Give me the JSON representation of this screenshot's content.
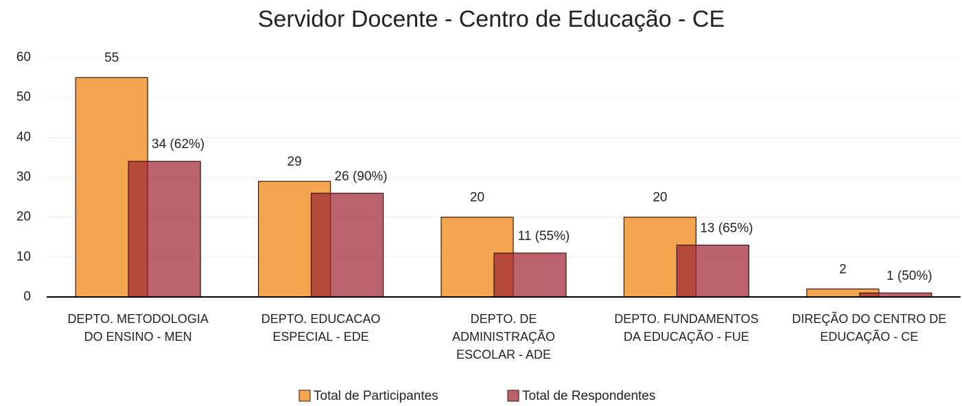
{
  "chart_data": {
    "type": "bar",
    "title": "Servidor Docente - Centro de Educação - CE",
    "categories": [
      "DEPTO.  METODOLOGIA\nDO ENSINO - MEN",
      "DEPTO. EDUCACAO\nESPECIAL - EDE",
      "DEPTO. DE\nADMINISTRAÇÃO\nESCOLAR - ADE",
      "DEPTO. FUNDAMENTOS\nDA EDUCAÇÃO - FUE",
      "DIREÇÃO DO CENTRO DE\nEDUCAÇÃO - CE"
    ],
    "series": [
      {
        "name": "Total de Participantes",
        "color": "#f2a54e",
        "values": [
          55,
          29,
          20,
          20,
          2
        ]
      },
      {
        "name": "Total de Respondentes",
        "color": "#9c2130",
        "values": [
          34,
          26,
          11,
          13,
          1
        ],
        "value_labels": [
          "34 (62%)",
          "26 (90%)",
          "11 (55%)",
          "13 (65%)",
          "1 (50%)"
        ]
      }
    ],
    "ylim": [
      0,
      60
    ],
    "yticks": [
      0,
      10,
      20,
      30,
      40,
      50,
      60
    ],
    "grid": true,
    "legend": "bottom"
  }
}
